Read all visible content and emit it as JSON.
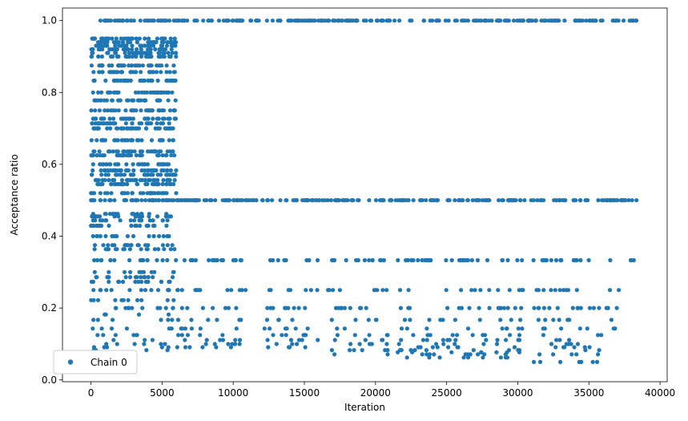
{
  "chart_data": {
    "type": "scatter",
    "title": "",
    "xlabel": "Iteration",
    "ylabel": "Acceptance ratio",
    "xlim": [
      -2000,
      40500
    ],
    "ylim": [
      -0.005,
      1.035
    ],
    "xticks": [
      0,
      5000,
      10000,
      15000,
      20000,
      25000,
      30000,
      35000,
      40000
    ],
    "xtick_labels": [
      "0",
      "5000",
      "10000",
      "15000",
      "20000",
      "25000",
      "30000",
      "35000",
      "40000"
    ],
    "yticks": [
      0.0,
      0.2,
      0.4,
      0.6,
      0.8,
      1.0
    ],
    "ytick_labels": [
      "0.0",
      "0.2",
      "0.4",
      "0.6",
      "0.8",
      "1.0"
    ],
    "grid": false,
    "legend_position": "lower-left",
    "marker_color": "#1f77b4",
    "series": [
      {
        "name": "Chain 0",
        "segments": [
          {
            "x_range": [
              0,
              6000
            ],
            "values": [
              1.0,
              0.92,
              0.91,
              0.9,
              0.875,
              0.857,
              0.833,
              0.8,
              0.778,
              0.75,
              0.727,
              0.714,
              0.7,
              0.667,
              0.636,
              0.625,
              0.6,
              0.583,
              0.571,
              0.556,
              0.545,
              0.5,
              0.462,
              0.455,
              0.444,
              0.429,
              0.4,
              0.375,
              0.364,
              0.333,
              0.3,
              0.286,
              0.273,
              0.25,
              0.222,
              0.2,
              0.182,
              0.167,
              0.143,
              0.125,
              0.111,
              0.1,
              0.091,
              0.083,
              0.95,
              0.94,
              0.93,
              0.52
            ]
          },
          {
            "x_range": [
              6000,
              38500
            ],
            "values": [
              1.0,
              0.5
            ]
          },
          {
            "x_range": [
              6000,
              11000
            ],
            "values": [
              0.333,
              0.25,
              0.2,
              0.167,
              0.143,
              0.125,
              0.111,
              0.1,
              0.091
            ]
          },
          {
            "x_range": [
              12200,
              16000
            ],
            "values": [
              0.333,
              0.25,
              0.2,
              0.167,
              0.143,
              0.125,
              0.111,
              0.1,
              0.091
            ]
          },
          {
            "x_range": [
              16600,
              21000
            ],
            "values": [
              0.333,
              0.25,
              0.2,
              0.167,
              0.143,
              0.125,
              0.111,
              0.1,
              0.083,
              0.071
            ]
          },
          {
            "x_range": [
              21500,
              30500
            ],
            "values": [
              0.333,
              0.25,
              0.2,
              0.167,
              0.143,
              0.125,
              0.111,
              0.1,
              0.091,
              0.083,
              0.077,
              0.071,
              0.0625
            ]
          },
          {
            "x_range": [
              31000,
              36000
            ],
            "values": [
              0.333,
              0.25,
              0.2,
              0.167,
              0.143,
              0.125,
              0.111,
              0.1,
              0.091,
              0.083,
              0.071,
              0.05
            ]
          },
          {
            "x_range": [
              36200,
              38500
            ],
            "values": [
              0.333,
              0.25,
              0.2,
              0.167,
              0.143
            ]
          }
        ]
      }
    ]
  }
}
